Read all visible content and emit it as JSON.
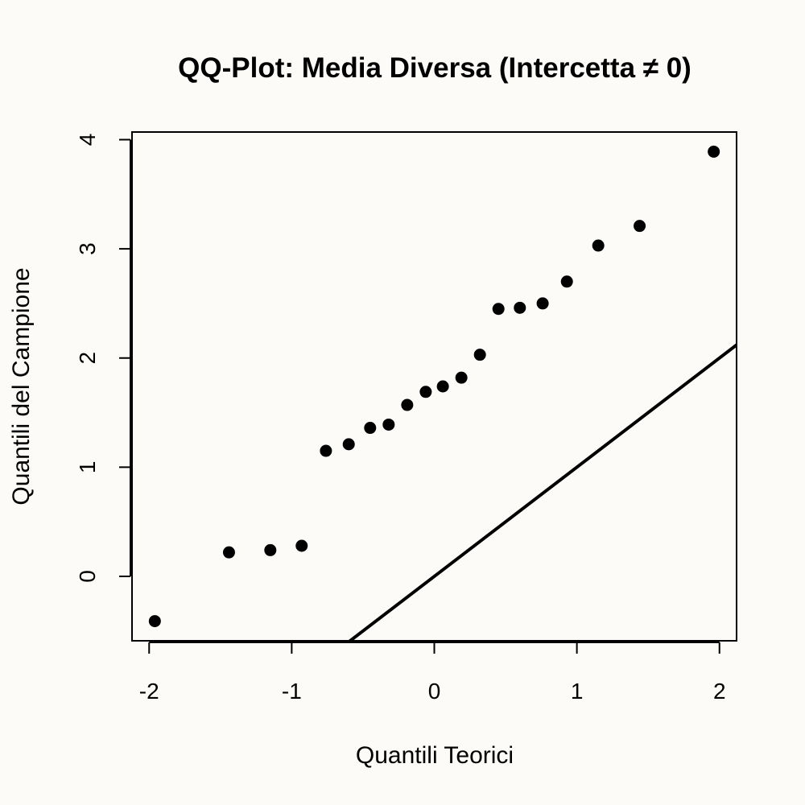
{
  "chart_data": {
    "type": "scatter",
    "title": "QQ-Plot: Media Diversa (Intercetta ≠ 0)",
    "xlabel": "Quantili Teorici",
    "ylabel": "Quantili del Campione",
    "xlim": [
      -2.12,
      2.12
    ],
    "ylim": [
      -0.59,
      4.07
    ],
    "x_ticks": [
      -2,
      -1,
      0,
      1,
      2
    ],
    "x_tick_labels": [
      "-2",
      "-1",
      "0",
      "1",
      "2"
    ],
    "y_ticks": [
      0,
      1,
      2,
      3,
      4
    ],
    "y_tick_labels": [
      "0",
      "1",
      "2",
      "3",
      "4"
    ],
    "grid": false,
    "points": {
      "x": [
        -1.96,
        -1.44,
        -1.15,
        -0.93,
        -0.76,
        -0.6,
        -0.45,
        -0.32,
        -0.19,
        -0.06,
        0.06,
        0.19,
        0.32,
        0.45,
        0.6,
        0.76,
        0.93,
        1.15,
        1.44,
        1.96
      ],
      "y": [
        -0.41,
        0.22,
        0.24,
        0.28,
        1.15,
        1.21,
        1.36,
        1.39,
        1.57,
        1.69,
        1.74,
        1.82,
        2.03,
        2.45,
        2.46,
        2.5,
        2.7,
        3.03,
        3.21,
        3.89
      ]
    },
    "reference_line": {
      "intercept": 0,
      "slope": 1
    },
    "colors": {
      "points": "#000000",
      "line": "#000000",
      "background": "#fcfbf7"
    }
  }
}
